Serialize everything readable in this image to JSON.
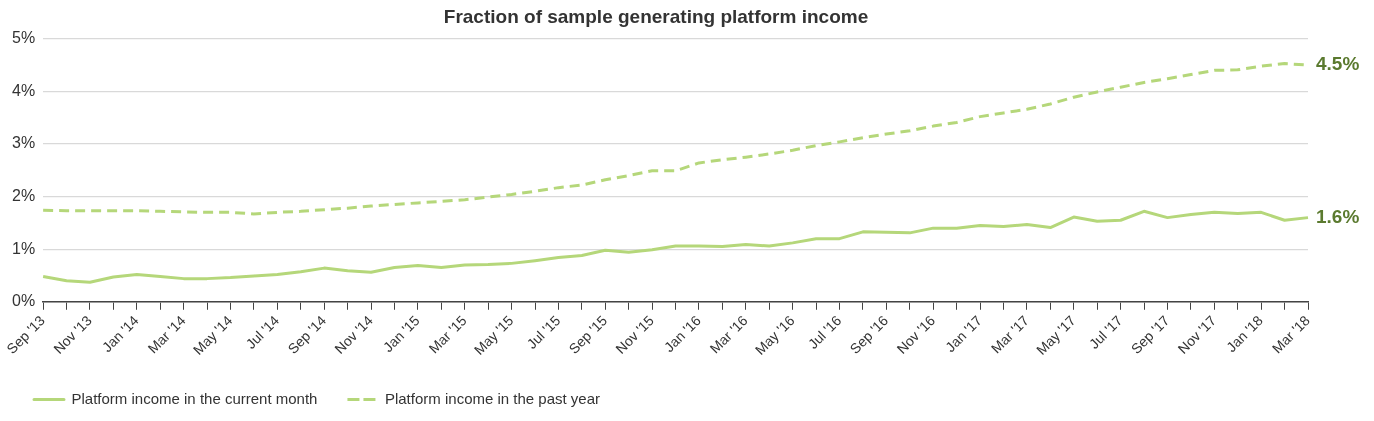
{
  "chart_data": {
    "type": "line",
    "title": "Fraction of sample generating platform income",
    "categories": [
      "Sep '13",
      null,
      "Nov '13",
      null,
      "Jan '14",
      null,
      "Mar '14",
      null,
      "May '14",
      null,
      "Jul '14",
      null,
      "Sep '14",
      null,
      "Nov '14",
      null,
      "Jan '15",
      null,
      "Mar '15",
      null,
      "May '15",
      null,
      "Jul '15",
      null,
      "Sep '15",
      null,
      "Nov '15",
      null,
      "Jan '16",
      null,
      "Mar '16",
      null,
      "May '16",
      null,
      "Jul '16",
      null,
      "Sep '16",
      null,
      "Nov '16",
      null,
      "Jan '17",
      null,
      "Mar '17",
      null,
      "May '17",
      null,
      "Jul '17",
      null,
      "Sep '17",
      null,
      "Nov '17",
      null,
      "Jan '18",
      null,
      "Mar '18"
    ],
    "series": [
      {
        "name": "Platform income in the current month",
        "color": "#b5d77a",
        "line_style": "solid",
        "values": [
          0.48,
          0.4,
          0.37,
          0.47,
          0.52,
          0.48,
          0.44,
          0.44,
          0.46,
          0.49,
          0.52,
          0.57,
          0.64,
          0.59,
          0.56,
          0.65,
          0.69,
          0.65,
          0.7,
          0.71,
          0.73,
          0.78,
          0.84,
          0.88,
          0.98,
          0.94,
          0.99,
          1.06,
          1.06,
          1.05,
          1.09,
          1.06,
          1.12,
          1.2,
          1.2,
          1.33,
          1.32,
          1.31,
          1.4,
          1.4,
          1.45,
          1.43,
          1.47,
          1.41,
          1.61,
          1.53,
          1.55,
          1.72,
          1.6,
          1.66,
          1.7,
          1.68,
          1.7,
          1.55,
          1.6
        ]
      },
      {
        "name": "Platform income in the past year",
        "color": "#b5d77a",
        "line_style": "dashed",
        "values": [
          1.74,
          1.73,
          1.73,
          1.73,
          1.73,
          1.72,
          1.71,
          1.7,
          1.7,
          1.67,
          1.7,
          1.72,
          1.75,
          1.78,
          1.82,
          1.85,
          1.88,
          1.91,
          1.94,
          1.99,
          2.04,
          2.1,
          2.17,
          2.22,
          2.32,
          2.4,
          2.49,
          2.49,
          2.64,
          2.7,
          2.75,
          2.81,
          2.88,
          2.97,
          3.04,
          3.12,
          3.19,
          3.25,
          3.34,
          3.41,
          3.52,
          3.59,
          3.66,
          3.76,
          3.89,
          3.99,
          4.08,
          4.17,
          4.24,
          4.32,
          4.4,
          4.41,
          4.48,
          4.53,
          4.5
        ]
      }
    ],
    "ylim": [
      0,
      5
    ],
    "yticks": [
      {
        "value": 0,
        "label": "0%"
      },
      {
        "value": 1,
        "label": "1%"
      },
      {
        "value": 2,
        "label": "2%"
      },
      {
        "value": 3,
        "label": "3%"
      },
      {
        "value": 4,
        "label": "4%"
      },
      {
        "value": 5,
        "label": "5%"
      }
    ],
    "annotations": [
      {
        "text": "4.5%",
        "x": "Mar '18",
        "y": 4.5
      },
      {
        "text": "1.6%",
        "x": "Mar '18",
        "y": 1.6
      }
    ],
    "grid": "y",
    "legend": "bottom left",
    "marker": "none"
  }
}
